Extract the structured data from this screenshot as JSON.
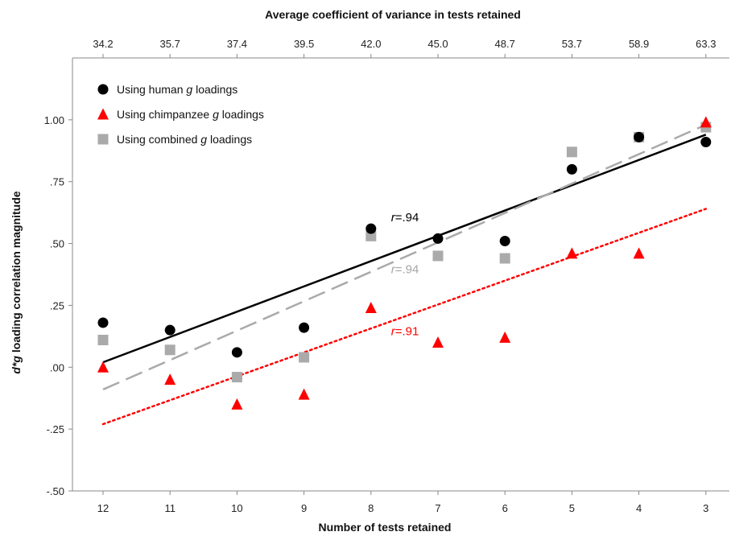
{
  "chart_data": {
    "type": "scatter",
    "x_label_bottom": "Number of tests retained",
    "x_label_top": "Average coefficient of variance in tests retained",
    "y_label_prefix": "d*g",
    "y_label_suffix": " loading correlation magnitude",
    "x_categories": [
      "12",
      "11",
      "10",
      "9",
      "8",
      "7",
      "6",
      "5",
      "4",
      "3"
    ],
    "x_top_ticks": [
      "34.2",
      "35.7",
      "37.4",
      "39.5",
      "42.0",
      "45.0",
      "48.7",
      "53.7",
      "58.9",
      "63.3"
    ],
    "y_ticks": [
      {
        "value": -0.5,
        "label": "-.50"
      },
      {
        "value": -0.25,
        "label": "-.25"
      },
      {
        "value": 0.0,
        "label": ".00"
      },
      {
        "value": 0.25,
        "label": ".25"
      },
      {
        "value": 0.5,
        "label": ".50"
      },
      {
        "value": 0.75,
        "label": ".75"
      },
      {
        "value": 1.0,
        "label": "1.00"
      }
    ],
    "ylim": [
      -0.5,
      1.25
    ],
    "series": [
      {
        "name": "Using human g loadings",
        "legend_parts": [
          "Using human ",
          "g",
          " loadings"
        ],
        "marker": "circle",
        "color": "#000000",
        "values": [
          0.18,
          0.15,
          0.06,
          0.16,
          0.56,
          0.52,
          0.51,
          0.8,
          0.93,
          0.91
        ],
        "trend": {
          "start": 0.02,
          "end": 0.94,
          "style": "solid",
          "width": 2.5
        },
        "r_label": "=.94",
        "r_label_color": "#000000",
        "r_label_anchor": {
          "x_index": 6.3,
          "y": 0.59
        }
      },
      {
        "name": "Using chimpanzee g loadings",
        "legend_parts": [
          "Using chimpanzee ",
          "g",
          " loadings"
        ],
        "marker": "triangle",
        "color": "#ff0000",
        "values": [
          0.0,
          -0.05,
          -0.15,
          -0.11,
          0.24,
          0.1,
          0.12,
          0.46,
          0.46,
          0.99
        ],
        "trend": {
          "start": -0.23,
          "end": 0.64,
          "style": "dotted",
          "width": 2.5
        },
        "r_label": "=.91",
        "r_label_color": "#ff0000",
        "r_label_anchor": {
          "x_index": 6.3,
          "y": 0.13
        }
      },
      {
        "name": "Using combined g loadings",
        "legend_parts": [
          "Using combined ",
          "g",
          " loadings"
        ],
        "marker": "square",
        "color": "#aaaaaa",
        "values": [
          0.11,
          0.07,
          -0.04,
          0.04,
          0.53,
          0.45,
          0.44,
          0.87,
          0.93,
          0.97
        ],
        "trend": {
          "start": -0.09,
          "end": 0.98,
          "style": "dashed",
          "width": 2.5
        },
        "r_label": "=.94",
        "r_label_color": "#a6a6a6",
        "r_label_anchor": {
          "x_index": 6.3,
          "y": 0.38
        }
      }
    ],
    "legend_position": "top-left",
    "grid": false
  }
}
